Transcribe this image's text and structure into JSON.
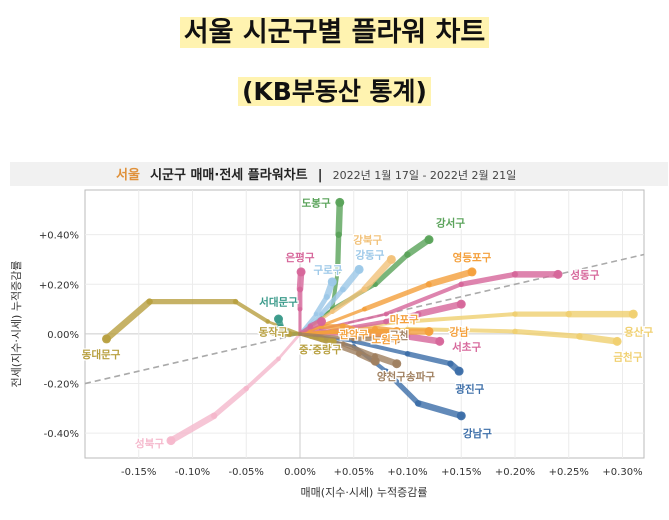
{
  "headline": {
    "line1": "서울 시군구별 플라워 차트",
    "line2": "(KB부동산 통계)"
  },
  "chart_data": {
    "type": "line",
    "title_prefix": "서울",
    "title_main": "시군구 매매·전세 플라워차트",
    "title_sep": "|",
    "title_period": "2022년 1월 17일 - 2022년 2월 21일",
    "xlabel": "매매(지수·시세) 누적증감률",
    "ylabel": "전세(지수·시세) 누적증감률",
    "xlim": [
      -0.2,
      0.32
    ],
    "ylim": [
      -0.5,
      0.58
    ],
    "x_ticks": [
      -0.15,
      -0.1,
      -0.05,
      0.0,
      0.05,
      0.1,
      0.15,
      0.2,
      0.25,
      0.3
    ],
    "x_tick_labels": [
      "-0.15%",
      "-0.10%",
      "-0.05%",
      "0.00%",
      "+0.05%",
      "+0.10%",
      "+0.15%",
      "+0.20%",
      "+0.25%",
      "+0.30%"
    ],
    "y_ticks": [
      -0.4,
      -0.2,
      0.0,
      0.2,
      0.4
    ],
    "y_tick_labels": [
      "-0.40%",
      "-0.20%",
      "0.00%",
      "+0.20%",
      "+0.40%"
    ],
    "reference_line": {
      "slope": 1.0,
      "style": "dashed",
      "color": "#aaaaaa"
    },
    "series": [
      {
        "name": "도봉구",
        "color": "#5aa35a",
        "points": [
          [
            0.0,
            0.0
          ],
          [
            0.03,
            0.1
          ],
          [
            0.035,
            0.25
          ],
          [
            0.036,
            0.4
          ],
          [
            0.037,
            0.53
          ]
        ]
      },
      {
        "name": "강서구",
        "color": "#5aa35a",
        "points": [
          [
            0.0,
            0.0
          ],
          [
            0.03,
            0.1
          ],
          [
            0.07,
            0.2
          ],
          [
            0.1,
            0.32
          ],
          [
            0.12,
            0.38
          ]
        ]
      },
      {
        "name": "강북구",
        "color": "#f2c27a",
        "points": [
          [
            0.0,
            0.0
          ],
          [
            0.03,
            0.09
          ],
          [
            0.06,
            0.18
          ],
          [
            0.085,
            0.3
          ]
        ]
      },
      {
        "name": "강동구",
        "color": "#9cc8e8",
        "points": [
          [
            0.0,
            0.0
          ],
          [
            0.02,
            0.08
          ],
          [
            0.04,
            0.18
          ],
          [
            0.055,
            0.26
          ]
        ]
      },
      {
        "name": "구로구",
        "color": "#9cc8e8",
        "points": [
          [
            0.0,
            0.0
          ],
          [
            0.015,
            0.08
          ],
          [
            0.025,
            0.15
          ],
          [
            0.03,
            0.21
          ]
        ]
      },
      {
        "name": "은평구",
        "color": "#d6669a",
        "points": [
          [
            0.0,
            0.0
          ],
          [
            0.0,
            0.1
          ],
          [
            0.0,
            0.18
          ],
          [
            0.001,
            0.25
          ]
        ]
      },
      {
        "name": "영등포구",
        "color": "#f4a03c",
        "points": [
          [
            0.0,
            0.0
          ],
          [
            0.06,
            0.1
          ],
          [
            0.12,
            0.2
          ],
          [
            0.16,
            0.25
          ]
        ]
      },
      {
        "name": "성동구",
        "color": "#d6669a",
        "points": [
          [
            0.0,
            0.0
          ],
          [
            0.08,
            0.08
          ],
          [
            0.15,
            0.2
          ],
          [
            0.2,
            0.24
          ],
          [
            0.24,
            0.24
          ]
        ]
      },
      {
        "name": "용산구",
        "color": "#f0d070",
        "points": [
          [
            0.0,
            0.0
          ],
          [
            0.1,
            0.05
          ],
          [
            0.2,
            0.08
          ],
          [
            0.25,
            0.08
          ],
          [
            0.31,
            0.08
          ]
        ]
      },
      {
        "name": "금천구",
        "color": "#f0d070",
        "points": [
          [
            0.0,
            0.0
          ],
          [
            0.1,
            0.02
          ],
          [
            0.2,
            0.01
          ],
          [
            0.26,
            -0.01
          ],
          [
            0.295,
            -0.03
          ]
        ]
      },
      {
        "name": "동대문구",
        "color": "#b8a040",
        "points": [
          [
            0.0,
            0.0
          ],
          [
            -0.03,
            0.05
          ],
          [
            -0.06,
            0.13
          ],
          [
            -0.14,
            0.13
          ],
          [
            -0.18,
            -0.02
          ]
        ]
      },
      {
        "name": "서대문구",
        "color": "#3a9a8a",
        "points": [
          [
            0.0,
            0.0
          ],
          [
            -0.01,
            0.0
          ],
          [
            -0.018,
            0.03
          ],
          [
            -0.02,
            0.06
          ]
        ]
      },
      {
        "name": "성북구",
        "color": "#f5b8cc",
        "points": [
          [
            0.0,
            0.0
          ],
          [
            -0.02,
            -0.1
          ],
          [
            -0.05,
            -0.22
          ],
          [
            -0.08,
            -0.33
          ],
          [
            -0.12,
            -0.43
          ]
        ]
      },
      {
        "name": "종로구",
        "color": "#d6669a",
        "points": [
          [
            0.0,
            0.0
          ],
          [
            0.04,
            0.02
          ],
          [
            0.08,
            0.05
          ],
          [
            0.11,
            0.08
          ],
          [
            0.15,
            0.12
          ]
        ]
      },
      {
        "name": "마포구",
        "color": "#f4a03c",
        "points": [
          [
            0.0,
            0.0
          ],
          [
            0.04,
            0.01
          ],
          [
            0.07,
            0.02
          ],
          [
            0.09,
            0.01
          ]
        ]
      },
      {
        "name": "강남구",
        "color": "#3c6ea8",
        "points": [
          [
            0.0,
            0.0
          ],
          [
            0.05,
            -0.05
          ],
          [
            0.08,
            -0.15
          ],
          [
            0.11,
            -0.28
          ],
          [
            0.15,
            -0.33
          ]
        ]
      },
      {
        "name": "광진구",
        "color": "#3c6ea8",
        "points": [
          [
            0.0,
            0.0
          ],
          [
            0.05,
            -0.03
          ],
          [
            0.1,
            -0.08
          ],
          [
            0.14,
            -0.12
          ],
          [
            0.148,
            -0.15
          ]
        ]
      },
      {
        "name": "서초구",
        "color": "#d6669a",
        "points": [
          [
            0.0,
            0.0
          ],
          [
            0.05,
            0.0
          ],
          [
            0.1,
            -0.01
          ],
          [
            0.13,
            -0.03
          ]
        ]
      },
      {
        "name": "송파구",
        "color": "#a08060",
        "points": [
          [
            0.0,
            0.0
          ],
          [
            0.04,
            -0.04
          ],
          [
            0.07,
            -0.09
          ],
          [
            0.09,
            -0.12
          ]
        ]
      },
      {
        "name": "양천구",
        "color": "#a08060",
        "points": [
          [
            0.0,
            0.0
          ],
          [
            0.03,
            -0.04
          ],
          [
            0.055,
            -0.08
          ],
          [
            0.07,
            -0.11
          ]
        ]
      },
      {
        "name": "노원구",
        "color": "#f4a03c",
        "points": [
          [
            0.0,
            0.0
          ],
          [
            0.03,
            0.01
          ],
          [
            0.06,
            0.0
          ],
          [
            0.08,
            -0.01
          ]
        ]
      },
      {
        "name": "관악구",
        "color": "#f4a03c",
        "points": [
          [
            0.0,
            0.0
          ],
          [
            0.02,
            0.03
          ],
          [
            0.04,
            0.03
          ],
          [
            0.06,
            0.0
          ]
        ]
      },
      {
        "name": "중랑구",
        "color": "#b8a040",
        "points": [
          [
            0.0,
            0.0
          ],
          [
            0.01,
            -0.01
          ],
          [
            0.02,
            -0.02
          ],
          [
            0.03,
            -0.03
          ]
        ]
      },
      {
        "name": "동작구",
        "color": "#b8a040",
        "points": [
          [
            0.0,
            0.0
          ],
          [
            -0.01,
            0.0
          ],
          [
            -0.025,
            0.01
          ]
        ]
      },
      {
        "name": "중구",
        "color": "#d6669a",
        "points": [
          [
            0.0,
            0.0
          ],
          [
            0.01,
            0.03
          ],
          [
            0.02,
            0.05
          ]
        ]
      },
      {
        "name": "강남",
        "color": "#f4a03c",
        "points": [
          [
            0.0,
            0.0
          ],
          [
            0.06,
            0.01
          ],
          [
            0.1,
            0.01
          ],
          [
            0.12,
            0.01
          ]
        ]
      },
      {
        "name": "금천",
        "color": "#a08060",
        "points": [
          [
            0.0,
            0.0
          ],
          [
            0.05,
            -0.02
          ],
          [
            0.08,
            -0.02
          ],
          [
            0.09,
            -0.02
          ]
        ]
      }
    ],
    "point_labels": [
      {
        "text": "도봉구",
        "x": 0.015,
        "y": 0.53,
        "color": "#5aa35a"
      },
      {
        "text": "강서구",
        "x": 0.14,
        "y": 0.45,
        "color": "#5aa35a"
      },
      {
        "text": "강북구",
        "x": 0.063,
        "y": 0.38,
        "color": "#f2c27a"
      },
      {
        "text": "강동구",
        "x": 0.065,
        "y": 0.32,
        "color": "#9cc8e8"
      },
      {
        "text": "구로구",
        "x": 0.026,
        "y": 0.26,
        "color": "#9cc8e8"
      },
      {
        "text": "은평구",
        "x": 0.0,
        "y": 0.31,
        "color": "#d6669a"
      },
      {
        "text": "영등포구",
        "x": 0.16,
        "y": 0.31,
        "color": "#f4a03c"
      },
      {
        "text": "성동구",
        "x": 0.265,
        "y": 0.24,
        "color": "#d6669a"
      },
      {
        "text": "서대문구",
        "x": -0.02,
        "y": 0.13,
        "color": "#3a9a8a"
      },
      {
        "text": "용산구",
        "x": 0.315,
        "y": 0.01,
        "color": "#f0d070"
      },
      {
        "text": "동대문구",
        "x": -0.185,
        "y": -0.08,
        "color": "#b8a040"
      },
      {
        "text": "금천구",
        "x": 0.305,
        "y": -0.09,
        "color": "#f0d070"
      },
      {
        "text": "성북구",
        "x": -0.14,
        "y": -0.44,
        "color": "#f5b8cc"
      },
      {
        "text": "강남구",
        "x": 0.165,
        "y": -0.4,
        "color": "#3c6ea8"
      },
      {
        "text": "광진구",
        "x": 0.158,
        "y": -0.22,
        "color": "#3c6ea8"
      },
      {
        "text": "서초구",
        "x": 0.155,
        "y": -0.05,
        "color": "#d6669a"
      },
      {
        "text": "양천구",
        "x": 0.085,
        "y": -0.17,
        "color": "#a08060"
      },
      {
        "text": "송파구",
        "x": 0.112,
        "y": -0.17,
        "color": "#a08060"
      },
      {
        "text": "마포구",
        "x": 0.097,
        "y": 0.06,
        "color": "#f4a03c"
      },
      {
        "text": "강남",
        "x": 0.148,
        "y": 0.01,
        "color": "#f4a03c"
      },
      {
        "text": "금천",
        "x": 0.092,
        "y": -0.005,
        "color": "#a08060"
      },
      {
        "text": "노원구",
        "x": 0.08,
        "y": -0.02,
        "color": "#f4a03c"
      },
      {
        "text": "관악구",
        "x": 0.05,
        "y": 0.0,
        "color": "#f4a03c"
      },
      {
        "text": "동작구",
        "x": -0.025,
        "y": 0.01,
        "color": "#b8a040"
      },
      {
        "text": "중구",
        "x": 0.008,
        "y": -0.06,
        "color": "#b8a040"
      },
      {
        "text": "중랑구",
        "x": 0.025,
        "y": -0.06,
        "color": "#b8a040"
      }
    ]
  }
}
